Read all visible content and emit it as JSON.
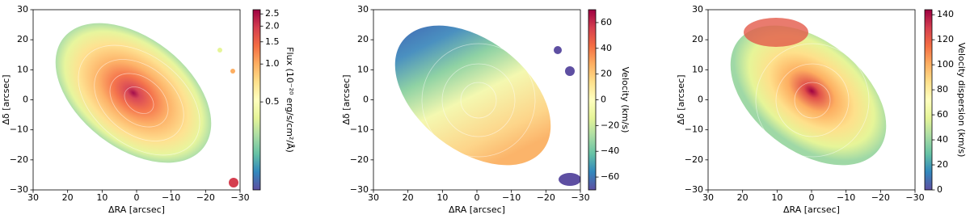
{
  "chart_data": [
    {
      "type": "image",
      "xlabel": "ΔRA [arcsec]",
      "ylabel": "Δδ [arcsec]",
      "xlim": [
        30,
        -30
      ],
      "ylim": [
        -30,
        30
      ],
      "xticks": [
        30,
        20,
        10,
        0,
        {
          "value": -10,
          "label": "−10"
        },
        {
          "value": -20,
          "label": "−20"
        },
        {
          "value": -30,
          "label": "−30"
        }
      ],
      "yticks": [
        {
          "value": -30,
          "label": "−30"
        },
        {
          "value": -20,
          "label": "−20"
        },
        {
          "value": -10,
          "label": "−10"
        },
        0,
        10,
        20,
        30
      ],
      "colorbar": {
        "label": "Flux (10⁻²⁰ erg/s/cm²/Å)",
        "scale": "log",
        "clim": [
          0.1,
          2.7
        ],
        "ticks": [
          0.5,
          {
            "value": 1,
            "label": "1.0"
          },
          1.5,
          {
            "value": 2,
            "label": "2.0"
          },
          2.5
        ]
      },
      "colormap": "Spectral_r"
    },
    {
      "type": "image",
      "xlabel": "ΔRA [arcsec]",
      "ylabel": "Δδ [arcsec]",
      "xlim": [
        30,
        -30
      ],
      "ylim": [
        -30,
        30
      ],
      "xticks": [
        30,
        20,
        10,
        0,
        {
          "value": -10,
          "label": "−10"
        },
        {
          "value": -20,
          "label": "−20"
        },
        {
          "value": -30,
          "label": "−30"
        }
      ],
      "yticks": [
        {
          "value": -30,
          "label": "−30"
        },
        {
          "value": -20,
          "label": "−20"
        },
        {
          "value": -10,
          "label": "−10"
        },
        0,
        10,
        20,
        30
      ],
      "colorbar": {
        "label": "Velocity (km/s)",
        "scale": "linear",
        "clim": [
          -70,
          70
        ],
        "ticks": [
          {
            "value": -60,
            "label": "−60"
          },
          {
            "value": -40,
            "label": "−40"
          },
          {
            "value": -20,
            "label": "−20"
          },
          0,
          20,
          40,
          60
        ]
      },
      "colormap": "Spectral_r"
    },
    {
      "type": "image",
      "xlabel": "ΔRA [arcsec]",
      "ylabel": "Δδ [arcsec]",
      "xlim": [
        30,
        -30
      ],
      "ylim": [
        -30,
        30
      ],
      "xticks": [
        30,
        20,
        10,
        0,
        {
          "value": -10,
          "label": "−10"
        },
        {
          "value": -20,
          "label": "−20"
        },
        {
          "value": -30,
          "label": "−30"
        }
      ],
      "yticks": [
        {
          "value": -30,
          "label": "−30"
        },
        {
          "value": -20,
          "label": "−20"
        },
        {
          "value": -10,
          "label": "−10"
        },
        0,
        10,
        20,
        30
      ],
      "colorbar": {
        "label": "Velocity dispersion (km/s)",
        "scale": "linear",
        "clim": [
          0,
          144
        ],
        "ticks": [
          0,
          20,
          40,
          60,
          80,
          100,
          120,
          140
        ]
      },
      "colormap": "Spectral_r"
    }
  ]
}
